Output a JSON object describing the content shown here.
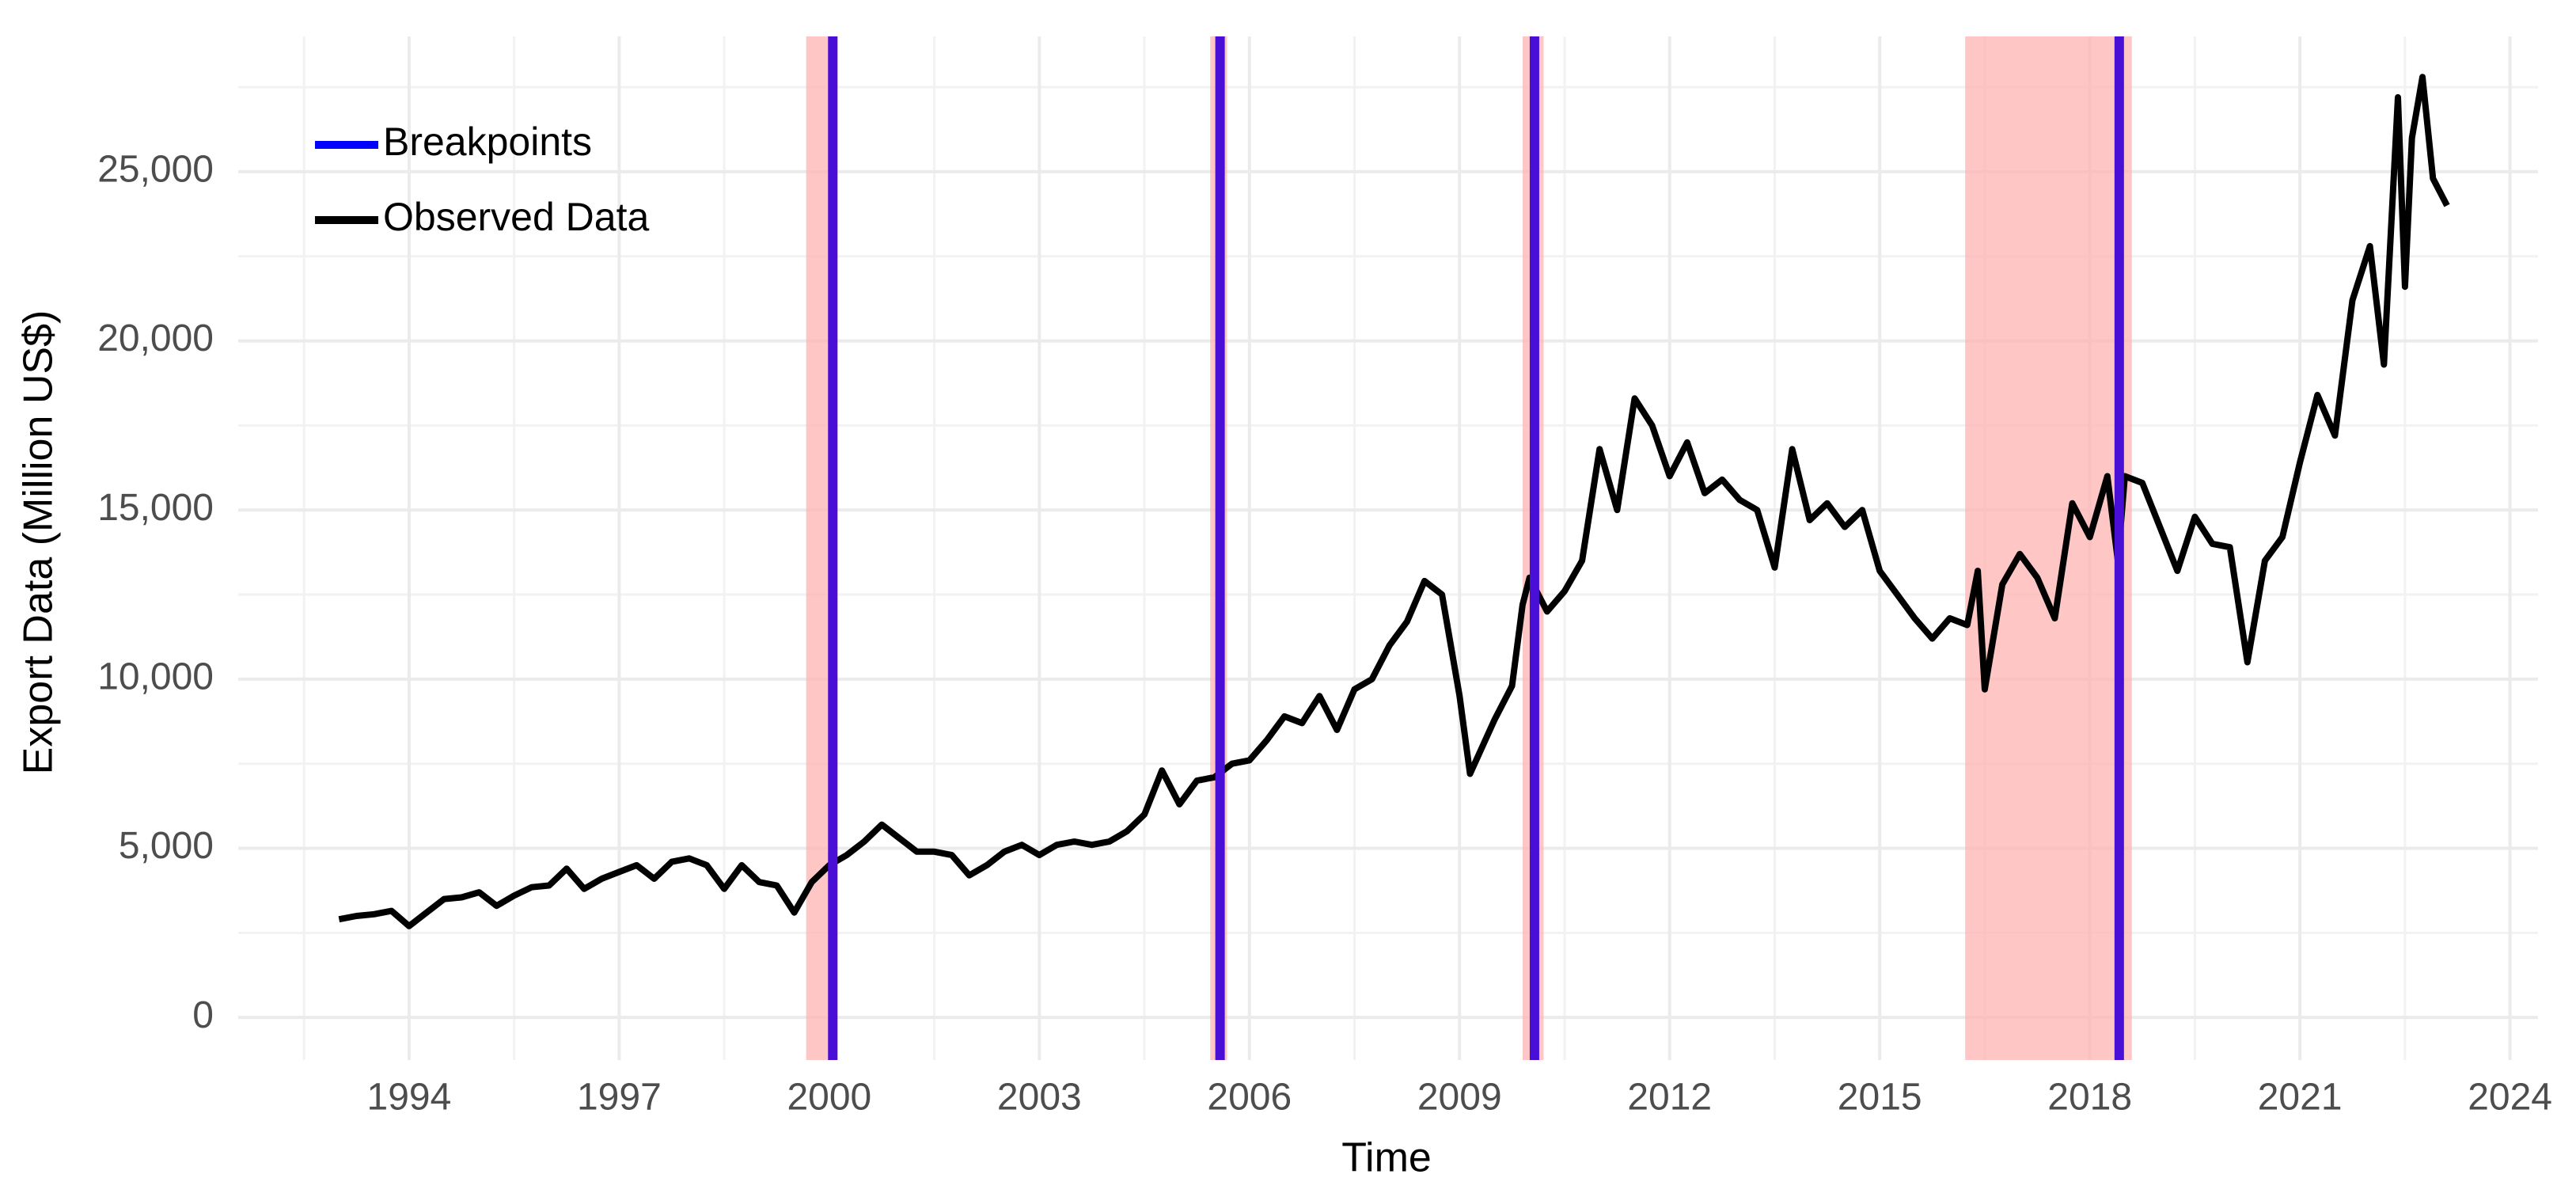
{
  "chart_data": {
    "type": "line",
    "x_label": "Time",
    "y_label": "Export Data (Million US$)",
    "x": [
      1993.0,
      1993.25,
      1993.5,
      1993.75,
      1994.0,
      1994.25,
      1994.5,
      1994.75,
      1995.0,
      1995.25,
      1995.5,
      1995.75,
      1996.0,
      1996.25,
      1996.5,
      1996.75,
      1997.0,
      1997.25,
      1997.5,
      1997.75,
      1998.0,
      1998.25,
      1998.5,
      1998.75,
      1999.0,
      1999.25,
      1999.5,
      1999.75,
      2000.0,
      2000.25,
      2000.5,
      2000.75,
      2001.0,
      2001.25,
      2001.5,
      2001.75,
      2002.0,
      2002.25,
      2002.5,
      2002.75,
      2003.0,
      2003.25,
      2003.5,
      2003.75,
      2004.0,
      2004.25,
      2004.5,
      2004.75,
      2005.0,
      2005.25,
      2005.5,
      2005.75,
      2006.0,
      2006.25,
      2006.5,
      2006.75,
      2007.0,
      2007.25,
      2007.5,
      2007.75,
      2008.0,
      2008.25,
      2008.5,
      2008.75,
      2009.0,
      2009.15,
      2009.5,
      2009.75,
      2009.9,
      2010.0,
      2010.25,
      2010.5,
      2010.75,
      2011.0,
      2011.25,
      2011.5,
      2011.75,
      2012.0,
      2012.25,
      2012.5,
      2012.75,
      2013.0,
      2013.25,
      2013.5,
      2013.75,
      2014.0,
      2014.25,
      2014.5,
      2014.75,
      2015.0,
      2015.25,
      2015.5,
      2015.75,
      2016.0,
      2016.25,
      2016.4,
      2016.5,
      2016.75,
      2017.0,
      2017.25,
      2017.5,
      2017.75,
      2018.0,
      2018.25,
      2018.4,
      2018.5,
      2018.75,
      2019.0,
      2019.25,
      2019.5,
      2019.75,
      2020.0,
      2020.25,
      2020.5,
      2020.75,
      2021.0,
      2021.25,
      2021.5,
      2021.75,
      2022.0,
      2022.2,
      2022.4,
      2022.5,
      2022.6,
      2022.75,
      2022.9,
      2023.1
    ],
    "series": [
      {
        "name": "Observed Data",
        "color": "#000000",
        "values": [
          2900,
          3000,
          3050,
          3150,
          2700,
          3100,
          3500,
          3550,
          3700,
          3300,
          3600,
          3850,
          3900,
          4400,
          3800,
          4100,
          4300,
          4500,
          4100,
          4600,
          4700,
          4500,
          3800,
          4500,
          4000,
          3900,
          3100,
          4000,
          4500,
          4800,
          5200,
          5700,
          5300,
          4900,
          4900,
          4800,
          4200,
          4500,
          4900,
          5100,
          4800,
          5100,
          5200,
          5100,
          5200,
          5500,
          6000,
          7300,
          6300,
          7000,
          7100,
          7500,
          7600,
          8200,
          8900,
          8700,
          9500,
          8500,
          9700,
          10000,
          11000,
          11700,
          12900,
          12500,
          9500,
          7200,
          8800,
          9800,
          12200,
          13000,
          12000,
          12600,
          13500,
          16800,
          15000,
          18300,
          17500,
          16000,
          17000,
          15500,
          15900,
          15300,
          15000,
          13300,
          16800,
          14700,
          15200,
          14500,
          15000,
          13200,
          12500,
          11800,
          11200,
          11800,
          11600,
          13200,
          9700,
          12800,
          13700,
          13000,
          11800,
          15200,
          14200,
          16000,
          13500,
          16000,
          15800,
          14500,
          13200,
          14800,
          14000,
          13900,
          10500,
          13500,
          14200,
          16400,
          18400,
          17200,
          21200,
          22800,
          19300,
          27200,
          21600,
          26000,
          27800,
          24800,
          24000
        ]
      }
    ],
    "breakpoints": {
      "name": "Breakpoints",
      "color": "#0000ff",
      "line_color": "#4a0fd6",
      "x": [
        2000.05,
        2005.58,
        2010.07,
        2018.42
      ]
    },
    "intervals": {
      "color": "#ffb3b3",
      "ranges": [
        [
          1999.67,
          2000.12
        ],
        [
          2005.44,
          2005.68
        ],
        [
          2009.9,
          2010.2
        ],
        [
          2016.22,
          2018.6
        ]
      ]
    },
    "xlim": [
      1991.56,
      2024.4
    ],
    "ylim": [
      -1260,
      29000
    ],
    "xticks": [
      1994,
      1997,
      2000,
      2003,
      2006,
      2009,
      2012,
      2015,
      2018,
      2021,
      2024
    ],
    "yticks": [
      0,
      {
        "value": 5000,
        "label": "5,000"
      },
      {
        "value": 10000,
        "label": "10,000"
      },
      {
        "value": 15000,
        "label": "15,000"
      },
      {
        "value": 20000,
        "label": "20,000"
      },
      {
        "value": 25000,
        "label": "25,000"
      }
    ],
    "grid": true,
    "legend": "top-left"
  }
}
